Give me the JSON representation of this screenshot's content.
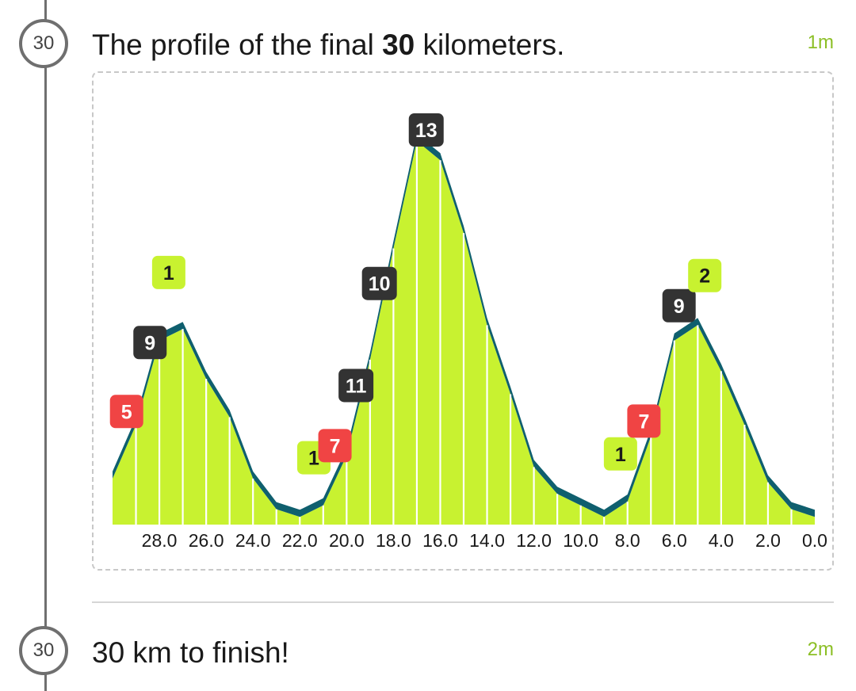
{
  "timeline": {
    "entries": [
      {
        "km": "30",
        "title_pre": "The profile of the final ",
        "title_bold": "30",
        "title_post": " kilometers.",
        "time": "1m"
      },
      {
        "km": "30",
        "title": "30 km to finish!",
        "time": "2m"
      }
    ]
  },
  "colors": {
    "fill": "#c8f230",
    "edge": "#0f5f6e",
    "gradient_dark": "#333333",
    "gradient_red": "#f04444",
    "gradient_green": "#c8f230",
    "accent_time": "#8cbf26"
  },
  "chart_data": {
    "type": "area",
    "title": "",
    "xlabel": "",
    "ylabel": "",
    "x_unit": "km to finish",
    "x_reversed": true,
    "xlim": [
      30,
      0
    ],
    "x_tick_labels": [
      "28.0",
      "26.0",
      "24.0",
      "22.0",
      "20.0",
      "18.0",
      "16.0",
      "14.0",
      "12.0",
      "10.0",
      "8.0",
      "6.0",
      "4.0",
      "2.0",
      "0.0"
    ],
    "x": [
      30,
      29,
      28,
      27,
      26,
      25,
      24,
      23,
      22,
      21,
      20,
      19,
      18,
      17,
      16,
      15,
      14,
      13,
      12,
      11,
      10,
      9,
      8,
      7,
      6,
      5,
      4,
      3,
      2,
      1,
      0
    ],
    "elevation": [
      0.12,
      0.26,
      0.48,
      0.51,
      0.38,
      0.28,
      0.12,
      0.04,
      0.02,
      0.05,
      0.18,
      0.43,
      0.72,
      1.0,
      0.95,
      0.76,
      0.52,
      0.34,
      0.15,
      0.08,
      0.05,
      0.02,
      0.06,
      0.23,
      0.48,
      0.52,
      0.4,
      0.26,
      0.11,
      0.04,
      0.02
    ],
    "gradient_labels": [
      {
        "x": 29.4,
        "value": "5",
        "color": "red"
      },
      {
        "x": 28.4,
        "value": "9",
        "color": "dark"
      },
      {
        "x": 27.6,
        "value": "1",
        "color": "green"
      },
      {
        "x": 21.4,
        "value": "1",
        "color": "green"
      },
      {
        "x": 20.5,
        "value": "7",
        "color": "red"
      },
      {
        "x": 19.6,
        "value": "11",
        "color": "dark"
      },
      {
        "x": 18.6,
        "value": "10",
        "color": "dark"
      },
      {
        "x": 16.6,
        "value": "13",
        "color": "dark"
      },
      {
        "x": 8.3,
        "value": "1",
        "color": "green"
      },
      {
        "x": 7.3,
        "value": "7",
        "color": "red"
      },
      {
        "x": 5.8,
        "value": "9",
        "color": "dark"
      },
      {
        "x": 4.7,
        "value": "2",
        "color": "green"
      }
    ],
    "grid": false,
    "legend": "none"
  }
}
